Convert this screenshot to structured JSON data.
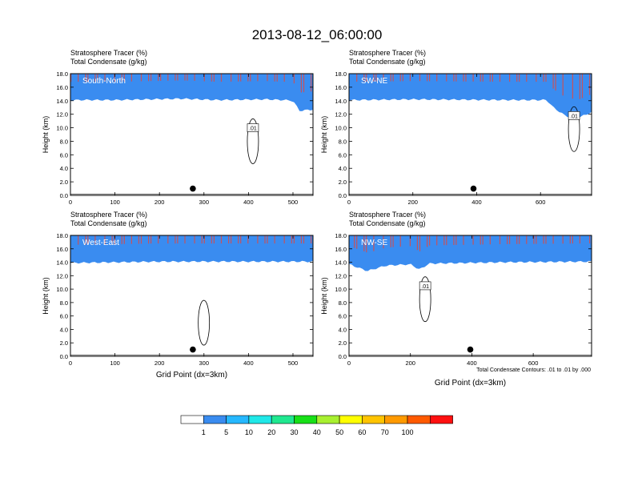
{
  "title": "2013-08-12_06:00:00",
  "panel_headers": {
    "line1": "Stratosphere Tracer   (%)",
    "line2": "Total Condensate   (g/kg)"
  },
  "contour_note": "Total Condensate Contours: .01 to .01 by .000",
  "colorbar": {
    "labels": [
      "1",
      "5",
      "10",
      "20",
      "30",
      "40",
      "50",
      "60",
      "70",
      "100"
    ],
    "colors": [
      "#ffffff",
      "#3a8cf0",
      "#26b8ff",
      "#20e8e8",
      "#20e890",
      "#18e018",
      "#a8f030",
      "#ffff00",
      "#ffc400",
      "#ff9a00",
      "#ff5a00",
      "#ff1010"
    ]
  },
  "chart_data": [
    {
      "type": "heatmap",
      "panel": "South-North",
      "xlabel": "",
      "ylabel": "Height (km)",
      "xlim": [
        0,
        545
      ],
      "ylim": [
        0,
        18
      ],
      "xticks": [
        0,
        100,
        200,
        300,
        400,
        500
      ],
      "yticks": [
        "0.0",
        "2.0",
        "4.0",
        "6.0",
        "8.0",
        "10.0",
        "12.0",
        "14.0",
        "16.0",
        "18.0"
      ],
      "tropopause": [
        [
          0,
          14.6
        ],
        [
          100,
          14.6
        ],
        [
          250,
          14.8
        ],
        [
          330,
          14.6
        ],
        [
          440,
          14.7
        ],
        [
          480,
          14.6
        ],
        [
          500,
          14.5
        ],
        [
          515,
          13.0
        ],
        [
          545,
          13.2
        ]
      ],
      "contour_label": ".01",
      "contour_label_pos": [
        410,
        10
      ],
      "marker": [
        275,
        1.0
      ]
    },
    {
      "type": "heatmap",
      "panel": "SW-NE",
      "xlabel": "",
      "ylabel": "Height (km)",
      "xlim": [
        0,
        760
      ],
      "ylim": [
        0,
        18
      ],
      "xticks": [
        0,
        200,
        400,
        600
      ],
      "yticks": [
        "0.0",
        "2.0",
        "4.0",
        "6.0",
        "8.0",
        "10.0",
        "12.0",
        "14.0",
        "16.0",
        "18.0"
      ],
      "tropopause": [
        [
          0,
          14.6
        ],
        [
          200,
          14.7
        ],
        [
          500,
          14.6
        ],
        [
          620,
          14.6
        ],
        [
          640,
          13.5
        ],
        [
          680,
          12.2
        ],
        [
          720,
          12.0
        ],
        [
          760,
          12.8
        ]
      ],
      "contour_label": ".01",
      "contour_label_pos": [
        705,
        11.8
      ],
      "marker": [
        390,
        1.0
      ]
    },
    {
      "type": "heatmap",
      "panel": "West-East",
      "xlabel": "Grid Point (dx=3km)",
      "ylabel": "Height (km)",
      "xlim": [
        0,
        545
      ],
      "ylim": [
        0,
        18
      ],
      "xticks": [
        0,
        100,
        200,
        300,
        400,
        500
      ],
      "yticks": [
        "0.0",
        "2.0",
        "4.0",
        "6.0",
        "8.0",
        "10.0",
        "12.0",
        "14.0",
        "16.0",
        "18.0"
      ],
      "tropopause": [
        [
          0,
          14.4
        ],
        [
          100,
          14.5
        ],
        [
          200,
          14.6
        ],
        [
          350,
          14.6
        ],
        [
          545,
          14.6
        ]
      ],
      "contour_label": "",
      "contour_label_pos": [
        0,
        0
      ],
      "marker": [
        275,
        1.0
      ]
    },
    {
      "type": "heatmap",
      "panel": "NW-SE",
      "xlabel": "Grid Point (dx=3km)",
      "ylabel": "Height (km)",
      "xlim": [
        0,
        790
      ],
      "ylim": [
        0,
        18
      ],
      "xticks": [
        0,
        200,
        400,
        600
      ],
      "yticks": [
        "0.0",
        "2.0",
        "4.0",
        "6.0",
        "8.0",
        "10.0",
        "12.0",
        "14.0",
        "16.0",
        "18.0"
      ],
      "tropopause": [
        [
          0,
          14.2
        ],
        [
          60,
          13.2
        ],
        [
          120,
          14.0
        ],
        [
          200,
          14.2
        ],
        [
          230,
          13.4
        ],
        [
          260,
          14.3
        ],
        [
          500,
          14.5
        ],
        [
          790,
          14.6
        ]
      ],
      "contour_label": ".01",
      "contour_label_pos": [
        248,
        10.5
      ],
      "marker": [
        395,
        1.0
      ]
    }
  ]
}
